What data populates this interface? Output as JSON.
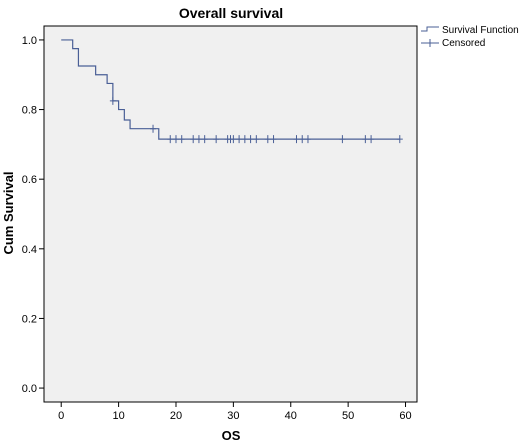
{
  "chart_data": {
    "type": "line",
    "title": "Overall survival",
    "xlabel": "OS",
    "ylabel": "Cum Survival",
    "xlim": [
      -3,
      62
    ],
    "ylim": [
      -0.04,
      1.04
    ],
    "x_ticks": [
      0,
      10,
      20,
      30,
      40,
      50,
      60
    ],
    "y_ticks": [
      0.0,
      0.2,
      0.4,
      0.6,
      0.8,
      1.0
    ],
    "x_tick_labels": [
      "0",
      "10",
      "20",
      "30",
      "40",
      "50",
      "60"
    ],
    "y_tick_labels": [
      "0.0",
      "0.2",
      "0.4",
      "0.6",
      "0.8",
      "1.0"
    ],
    "grid": false,
    "plot_background": "#f0f0f0",
    "line_color": "#4a5f96",
    "legend_position": "top-right outside",
    "series": [
      {
        "name": "Survival Function",
        "step": true,
        "x": [
          0,
          2,
          3,
          6,
          8,
          9,
          10,
          11,
          12,
          17,
          59
        ],
        "y": [
          1.0,
          0.975,
          0.925,
          0.9,
          0.875,
          0.825,
          0.8,
          0.77,
          0.745,
          0.715,
          0.715
        ]
      },
      {
        "name": "Censored",
        "marker": "+",
        "x": [
          9,
          16,
          19,
          20,
          21,
          23,
          24,
          25,
          27,
          29,
          29.5,
          30,
          31,
          32,
          33,
          34,
          36,
          37,
          41,
          42,
          43,
          49,
          53,
          54,
          59
        ],
        "y": [
          0.825,
          0.745,
          0.715,
          0.715,
          0.715,
          0.715,
          0.715,
          0.715,
          0.715,
          0.715,
          0.715,
          0.715,
          0.715,
          0.715,
          0.715,
          0.715,
          0.715,
          0.715,
          0.715,
          0.715,
          0.715,
          0.715,
          0.715,
          0.715,
          0.715
        ]
      }
    ]
  }
}
